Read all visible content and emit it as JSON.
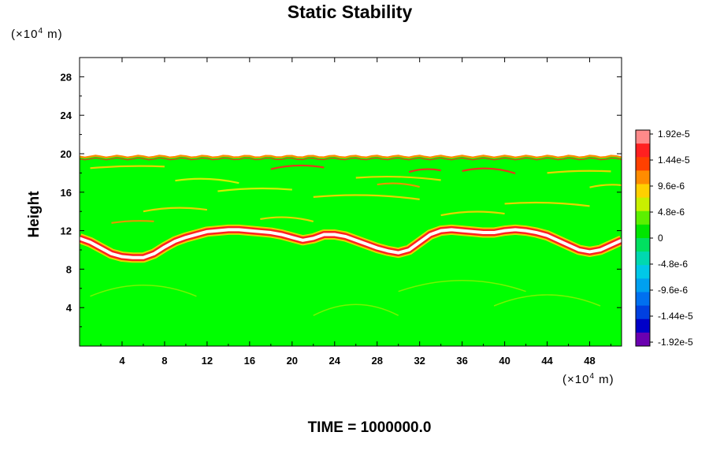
{
  "chart_data": {
    "type": "heatmap",
    "title": "Static Stability",
    "ylabel": "Height",
    "x_unit": "(×10",
    "x_unit_exp": "4",
    "x_unit_tail": " m)",
    "y_unit": "(×10",
    "y_unit_exp": "4",
    "y_unit_tail": " m)",
    "footer_label": "TIME = ",
    "footer_value": "1000000.0",
    "xlim": [
      0,
      51
    ],
    "ylim": [
      0,
      30
    ],
    "x_ticks": [
      4,
      8,
      12,
      16,
      20,
      24,
      28,
      32,
      36,
      40,
      44,
      48
    ],
    "y_ticks": [
      4,
      8,
      12,
      16,
      20,
      24,
      28
    ],
    "data_top_height": 19.7,
    "colorbar": {
      "labels": [
        "1.92e-5",
        "1.44e-5",
        "9.6e-6",
        "4.8e-6",
        "0",
        "-4.8e-6",
        "-9.6e-6",
        "-1.44e-5",
        "-1.92e-5"
      ],
      "levels": [
        1.92e-05,
        1.44e-05,
        9.6e-06,
        4.8e-06,
        0,
        -4.8e-06,
        -9.6e-06,
        -1.44e-05,
        -1.92e-05
      ],
      "colors": [
        "#ff8a8a",
        "#ff2020",
        "#ff4000",
        "#ff8c00",
        "#ffd000",
        "#c8f000",
        "#5cf000",
        "#00e600",
        "#00e060",
        "#00d8b0",
        "#00c8e8",
        "#00a0f0",
        "#0070f0",
        "#0040e0",
        "#0000c8",
        "#6a00b0"
      ]
    },
    "background_color": "#00ff00",
    "features": {
      "tropopause_band": {
        "x": [
          0,
          1,
          2,
          3,
          4,
          5,
          6,
          7,
          8,
          9,
          10,
          11,
          12,
          13,
          14,
          15,
          16,
          17,
          18,
          19,
          20,
          21,
          22,
          23,
          24,
          25,
          26,
          27,
          28,
          29,
          30,
          31,
          32,
          33,
          34,
          35,
          36,
          37,
          38,
          39,
          40,
          41,
          42,
          43,
          44,
          45,
          46,
          47,
          48,
          49,
          50,
          51
        ],
        "y": [
          11.2,
          10.8,
          10.2,
          9.6,
          9.3,
          9.2,
          9.2,
          9.6,
          10.3,
          10.9,
          11.3,
          11.6,
          11.9,
          12.0,
          12.1,
          12.1,
          12.0,
          11.9,
          11.8,
          11.6,
          11.3,
          11.0,
          11.2,
          11.6,
          11.6,
          11.4,
          11.0,
          10.6,
          10.2,
          9.9,
          9.7,
          10.0,
          10.8,
          11.6,
          12.0,
          12.1,
          12.0,
          11.9,
          11.8,
          11.8,
          12.0,
          12.1,
          12.0,
          11.8,
          11.5,
          11.0,
          10.5,
          10.0,
          9.8,
          10.0,
          10.5,
          11.0
        ]
      }
    }
  }
}
